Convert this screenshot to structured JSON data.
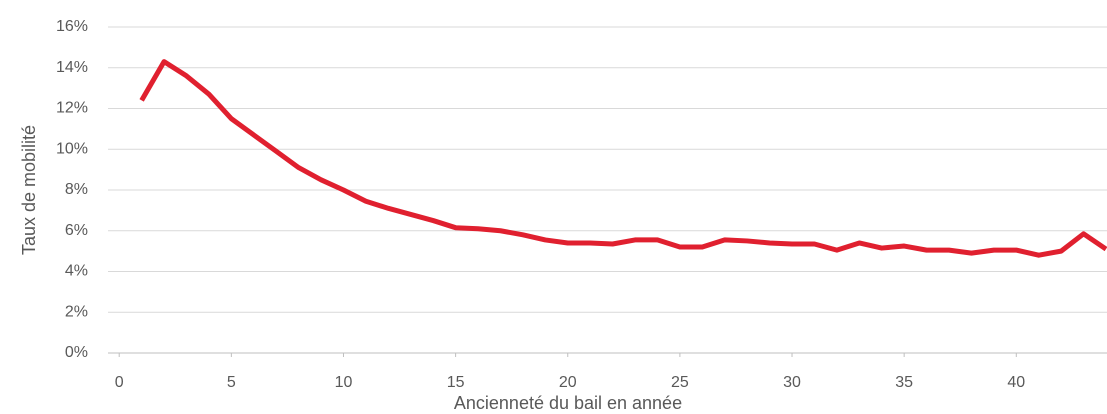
{
  "chart_data": {
    "type": "line",
    "xlabel": "Ancienneté du bail en année",
    "ylabel": "Taux de mobilité",
    "x": [
      1,
      2,
      3,
      4,
      5,
      6,
      7,
      8,
      9,
      10,
      11,
      12,
      13,
      14,
      15,
      16,
      17,
      18,
      19,
      20,
      21,
      22,
      23,
      24,
      25,
      26,
      27,
      28,
      29,
      30,
      31,
      32,
      33,
      34,
      35,
      36,
      37,
      38,
      39,
      40,
      41,
      42,
      43,
      44
    ],
    "values": [
      12.4,
      14.3,
      13.6,
      12.7,
      11.5,
      10.7,
      9.9,
      9.1,
      8.5,
      8.0,
      7.45,
      7.1,
      6.8,
      6.5,
      6.15,
      6.1,
      6.0,
      5.8,
      5.55,
      5.4,
      5.4,
      5.35,
      5.55,
      5.55,
      5.2,
      5.2,
      5.55,
      5.5,
      5.4,
      5.35,
      5.35,
      5.05,
      5.4,
      5.15,
      5.25,
      5.05,
      5.05,
      4.9,
      5.05,
      5.05,
      4.8,
      5.0,
      5.85,
      5.1
    ],
    "color": "#e0202f",
    "xlim": [
      -0.5,
      44
    ],
    "xticks": [
      0,
      5,
      10,
      15,
      20,
      25,
      30,
      35,
      40
    ],
    "ylim": [
      0,
      16
    ],
    "yticks": [
      {
        "value": 0,
        "label": "0%"
      },
      {
        "value": 2,
        "label": "2%"
      },
      {
        "value": 4,
        "label": "4%"
      },
      {
        "value": 6,
        "label": "6%"
      },
      {
        "value": 8,
        "label": "8%"
      },
      {
        "value": 10,
        "label": "10%"
      },
      {
        "value": 12,
        "label": "12%"
      },
      {
        "value": 14,
        "label": "14%"
      },
      {
        "value": 16,
        "label": "16%"
      }
    ],
    "grid": true
  }
}
